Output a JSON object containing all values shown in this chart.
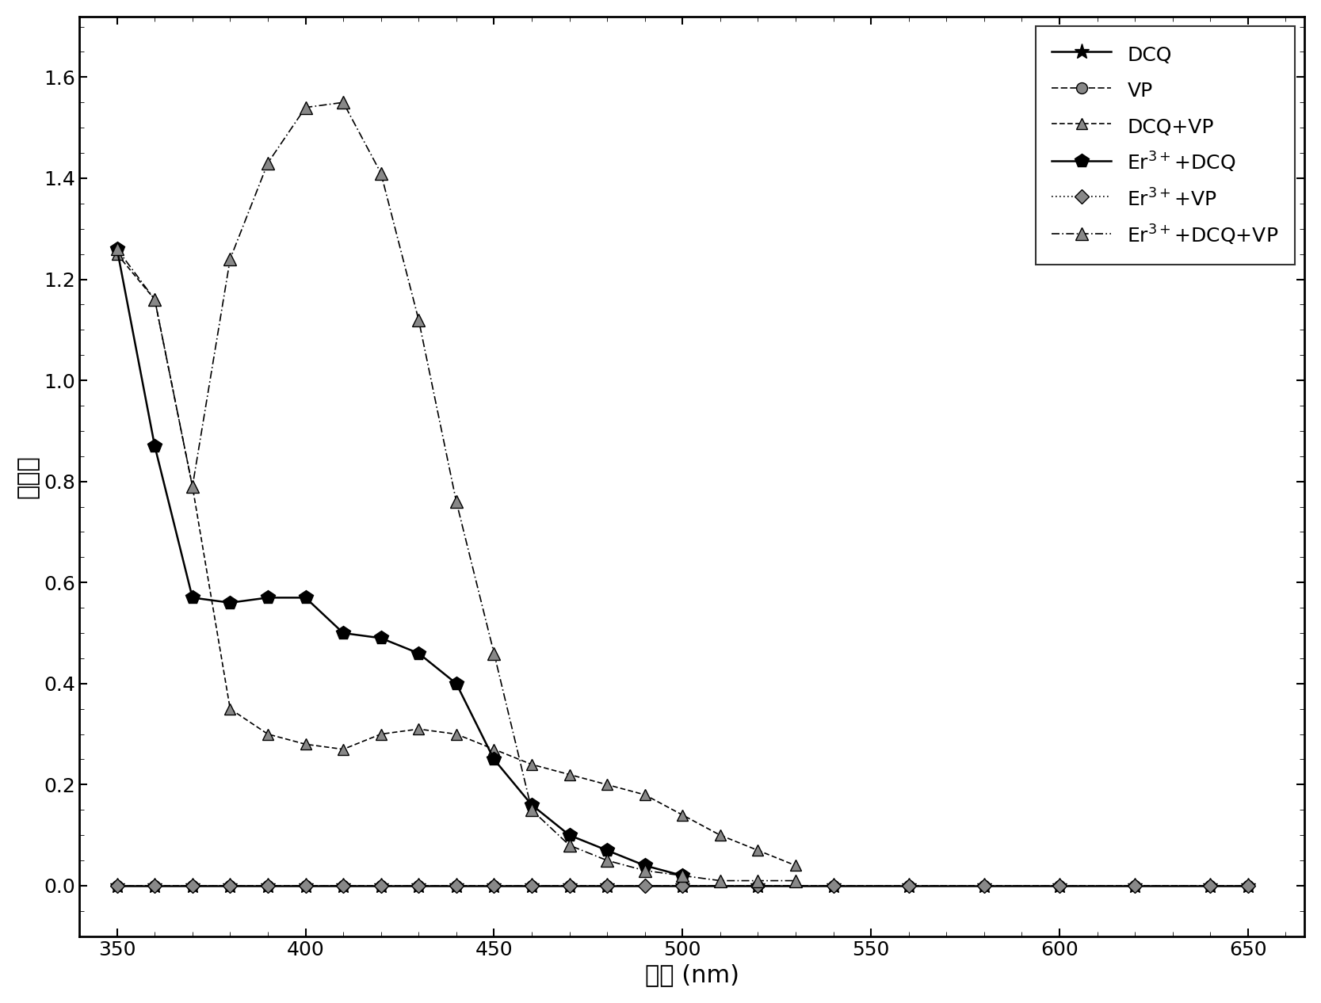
{
  "xlabel": "波长 (nm)",
  "ylabel": "吸光率",
  "xlim": [
    340,
    665
  ],
  "ylim": [
    -0.1,
    1.72
  ],
  "xticks": [
    350,
    400,
    450,
    500,
    550,
    600,
    650
  ],
  "yticks": [
    0.0,
    0.2,
    0.4,
    0.6,
    0.8,
    1.0,
    1.2,
    1.4,
    1.6
  ],
  "series": [
    {
      "label": "DCQ",
      "x": [
        350,
        360,
        370,
        380,
        390,
        400,
        410,
        420,
        430,
        440,
        450,
        460,
        470,
        480,
        500,
        520,
        540,
        560,
        580,
        600,
        620,
        640,
        650
      ],
      "y": [
        0.0,
        0.0,
        0.0,
        0.0,
        0.0,
        0.0,
        0.0,
        0.0,
        0.0,
        0.0,
        0.0,
        0.0,
        0.0,
        0.0,
        0.0,
        0.0,
        0.0,
        0.0,
        0.0,
        0.0,
        0.0,
        0.0,
        0.0
      ],
      "linestyle": "solid",
      "marker": "star",
      "markersize": 14,
      "linewidth": 1.8,
      "mfc": "black",
      "mec": "black"
    },
    {
      "label": "VP",
      "x": [
        350,
        360,
        370,
        380,
        390,
        400,
        410,
        420,
        430,
        440,
        450,
        460,
        470,
        480,
        500,
        520,
        540,
        560,
        580,
        600,
        620,
        640,
        650
      ],
      "y": [
        0.0,
        0.0,
        0.0,
        0.0,
        0.0,
        0.0,
        0.0,
        0.0,
        0.0,
        0.0,
        0.0,
        0.0,
        0.0,
        0.0,
        0.0,
        0.0,
        0.0,
        0.0,
        0.0,
        0.0,
        0.0,
        0.0,
        0.0
      ],
      "linestyle": "dashed",
      "marker": "circle_hatch",
      "markersize": 10,
      "linewidth": 1.2,
      "mfc": "gray",
      "mec": "black"
    },
    {
      "label": "DCQ+VP",
      "x": [
        350,
        360,
        370,
        380,
        390,
        400,
        410,
        420,
        430,
        440,
        450,
        460,
        470,
        480,
        490,
        500,
        510,
        520,
        530
      ],
      "y": [
        1.25,
        1.16,
        0.79,
        0.35,
        0.3,
        0.28,
        0.27,
        0.3,
        0.31,
        0.3,
        0.27,
        0.24,
        0.22,
        0.2,
        0.18,
        0.14,
        0.1,
        0.07,
        0.04
      ],
      "linestyle": "dashdot_short",
      "marker": "triangle_hatch",
      "markersize": 10,
      "linewidth": 1.2,
      "mfc": "gray",
      "mec": "black"
    },
    {
      "label": "Er$^{3+}$+DCQ",
      "x": [
        350,
        360,
        370,
        380,
        390,
        400,
        410,
        420,
        430,
        440,
        450,
        460,
        470,
        480,
        490,
        500
      ],
      "y": [
        1.26,
        0.87,
        0.57,
        0.56,
        0.57,
        0.57,
        0.5,
        0.49,
        0.46,
        0.4,
        0.25,
        0.16,
        0.1,
        0.07,
        0.04,
        0.02
      ],
      "linestyle": "solid",
      "marker": "pentagon",
      "markersize": 13,
      "linewidth": 1.8,
      "mfc": "black",
      "mec": "black"
    },
    {
      "label": "Er$^{3+}$+VP",
      "x": [
        350,
        360,
        370,
        380,
        390,
        400,
        410,
        420,
        430,
        440,
        450,
        460,
        470,
        480,
        490,
        500,
        520,
        540,
        560,
        580,
        600,
        620,
        640,
        650
      ],
      "y": [
        0.0,
        0.0,
        0.0,
        0.0,
        0.0,
        0.0,
        0.0,
        0.0,
        0.0,
        0.0,
        0.0,
        0.0,
        0.0,
        0.0,
        0.0,
        0.0,
        0.0,
        0.0,
        0.0,
        0.0,
        0.0,
        0.0,
        0.0,
        0.0
      ],
      "linestyle": "dotted",
      "marker": "diamond_hatch",
      "markersize": 9,
      "linewidth": 1.2,
      "mfc": "gray",
      "mec": "black"
    },
    {
      "label": "Er$^{3+}$+DCQ+VP",
      "x": [
        350,
        360,
        370,
        380,
        390,
        400,
        410,
        420,
        430,
        440,
        450,
        460,
        470,
        480,
        490,
        500,
        510,
        520,
        530
      ],
      "y": [
        1.26,
        1.16,
        0.79,
        1.24,
        1.43,
        1.54,
        1.55,
        1.41,
        1.12,
        0.76,
        0.46,
        0.15,
        0.08,
        0.05,
        0.03,
        0.02,
        0.01,
        0.01,
        0.01
      ],
      "linestyle": "dashed_dot",
      "marker": "triangle_hatch2",
      "markersize": 11,
      "linewidth": 1.2,
      "mfc": "gray",
      "mec": "black"
    }
  ],
  "background_color": "#ffffff",
  "legend_loc": "upper right",
  "legend_fontsize": 18,
  "axis_label_fontsize": 22,
  "tick_fontsize": 18
}
